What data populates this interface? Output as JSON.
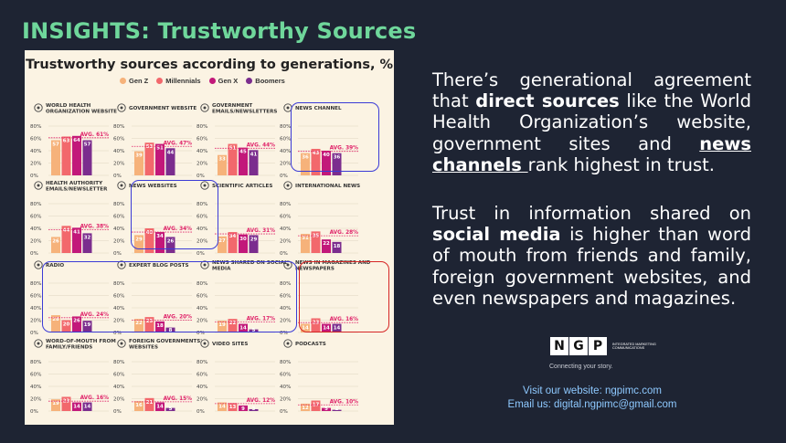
{
  "slide_title": "INSIGHTS: Trustworthy Sources",
  "paragraph1": {
    "t1": "There’s generational agreement that ",
    "b1": "direct sources",
    "t2": " like the World Health Organization’s website, government sites and ",
    "b2": "news channels ",
    "t3": "rank highest in trust."
  },
  "paragraph2": {
    "t1": "Trust in information shared on ",
    "b1": "social media",
    "t2": " is higher than word of mouth from friends and family, foreign government websites, and even newspapers and magazines."
  },
  "logo": {
    "letters": [
      "N",
      "G",
      "P"
    ],
    "subtitle": "INTEGRATED MARKETING COMMUNICATIONS",
    "tagline": "Connecting your story."
  },
  "contact": {
    "website": "Visit our website: ngpimc.com",
    "email": "Email us: digital.ngpimc@gmail.com"
  },
  "chart_data": {
    "type": "bar",
    "title": "Trustworthy sources according to generations, %",
    "series_names": [
      "Gen Z",
      "Millennials",
      "Gen X",
      "Boomers"
    ],
    "colors": {
      "Gen Z": "#f6b27a",
      "Millennials": "#f2686c",
      "Gen X": "#c2187a",
      "Boomers": "#7b2d8e",
      "avg": "#e0246a"
    },
    "y_ticks": [
      "80%",
      "60%",
      "40%",
      "20%",
      "0%"
    ],
    "ylim": [
      0,
      80
    ],
    "grid": true,
    "legend_position": "top",
    "panels": [
      {
        "title": "WORLD HEALTH ORGANIZATION WEBSITE",
        "icon": "globe-icon",
        "values": [
          57,
          63,
          64,
          57
        ],
        "labels": [
          "57",
          "63",
          "64",
          "57"
        ],
        "avg_label": "AVG. 61%",
        "avg": 61
      },
      {
        "title": "GOVERNMENT WEBSITE",
        "icon": "monitor-icon",
        "values": [
          39,
          53,
          51,
          44
        ],
        "labels": [
          "39",
          "53",
          "51",
          "44"
        ],
        "avg_label": "AVG. 47%",
        "avg": 47
      },
      {
        "title": "GOVERNMENT EMAILS/NEWSLETTERS",
        "icon": "mail-icon",
        "values": [
          33,
          51,
          45,
          41
        ],
        "labels": [
          "33",
          "51",
          "45",
          "41"
        ],
        "avg_label": "AVG. 44%",
        "avg": 44
      },
      {
        "title": "NEWS CHANNEL",
        "icon": "tv-icon",
        "values": [
          36,
          43,
          40,
          36
        ],
        "labels": [
          "36",
          "43",
          "40",
          "36"
        ],
        "avg_label": "AVG. 39%",
        "avg": 39
      },
      {
        "title": "HEALTH AUTHORITY EMAILS/NEWSLETTER",
        "icon": "mail-icon",
        "values": [
          26,
          44,
          41,
          32
        ],
        "labels": [
          "26",
          "44",
          "41",
          "32"
        ],
        "avg_label": "AVG. 38%",
        "avg": 38
      },
      {
        "title": "NEWS WEBSITES",
        "icon": "monitor-icon",
        "values": [
          29,
          40,
          34,
          26
        ],
        "labels": [
          "29",
          "40",
          "34",
          "26"
        ],
        "avg_label": "AVG. 34%",
        "avg": 34
      },
      {
        "title": "SCIENTIFIC ARTICLES",
        "icon": "document-icon",
        "values": [
          27,
          34,
          30,
          29
        ],
        "labels": [
          "27",
          "34",
          "30",
          "29"
        ],
        "avg_label": "AVG. 31%",
        "avg": 31
      },
      {
        "title": "INTERNATIONAL NEWS",
        "icon": "globe-icon",
        "values": [
          31,
          35,
          22,
          18
        ],
        "labels": [
          "31",
          "35",
          "22",
          "18"
        ],
        "avg_label": "AVG. 28%",
        "avg": 28
      },
      {
        "title": "RADIO",
        "icon": "radio-icon",
        "values": [
          28,
          20,
          26,
          19
        ],
        "labels": [
          "28",
          "20",
          "26",
          "19"
        ],
        "avg_label": "AVG. 24%",
        "avg": 24
      },
      {
        "title": "EXPERT BLOG POSTS",
        "icon": "monitor-icon",
        "values": [
          22,
          25,
          18,
          8
        ],
        "labels": [
          "22",
          "25",
          "18",
          "8"
        ],
        "avg_label": "AVG. 20%",
        "avg": 20
      },
      {
        "title": "NEWS SHARED ON SOCIAL MEDIA",
        "icon": "share-icon",
        "values": [
          19,
          22,
          14,
          5
        ],
        "labels": [
          "19",
          "22",
          "14",
          "5"
        ],
        "avg_label": "AVG. 17%",
        "avg": 17
      },
      {
        "title": "NEWS IN MAGAZINES AND NEWSPAPERS",
        "icon": "newspaper-icon",
        "values": [
          14,
          23,
          14,
          14
        ],
        "labels": [
          "14",
          "23",
          "14",
          "14"
        ],
        "avg_label": "AVG. 16%",
        "avg": 16
      },
      {
        "title": "WORD-OF-MOUTH FROM FAMILY/FRIENDS",
        "icon": "people-icon",
        "values": [
          19,
          23,
          14,
          14
        ],
        "labels": [
          "19",
          "23",
          "14",
          "14"
        ],
        "avg_label": "AVG. 16%",
        "avg": 16
      },
      {
        "title": "FOREIGN GOVERNMENTS' WEBSITES",
        "icon": "monitor-icon",
        "values": [
          16,
          21,
          14,
          5
        ],
        "labels": [
          "16",
          "21",
          "14",
          "5"
        ],
        "avg_label": "AVG. 15%",
        "avg": 15
      },
      {
        "title": "VIDEO SITES",
        "icon": "play-icon",
        "values": [
          14,
          13,
          9,
          3
        ],
        "labels": [
          "14",
          "13",
          "9",
          "3"
        ],
        "avg_label": "AVG. 12%",
        "avg": 12
      },
      {
        "title": "PODCASTS",
        "icon": "microphone-icon",
        "values": [
          12,
          17,
          5,
          2
        ],
        "labels": [
          "12",
          "17",
          "5",
          "2"
        ],
        "avg_label": "AVG. 10%",
        "avg": 10
      }
    ]
  }
}
